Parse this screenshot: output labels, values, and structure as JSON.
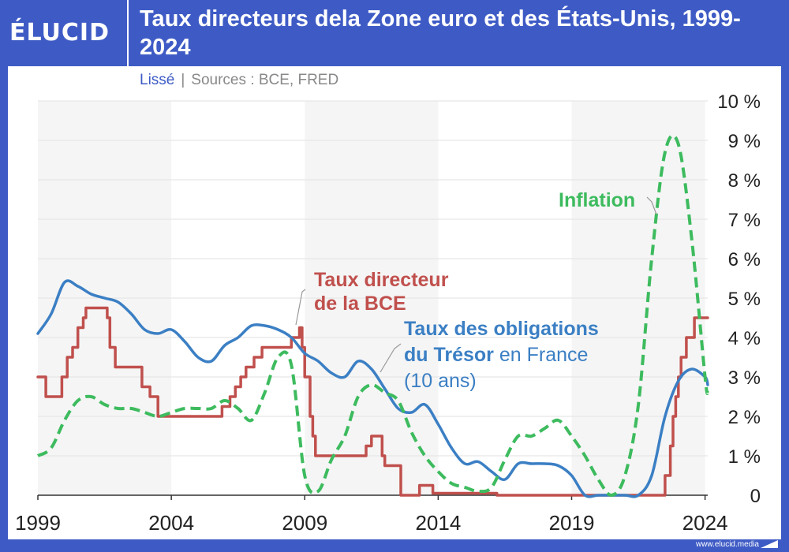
{
  "brand": {
    "logo_text": "ÉLUCID",
    "url": "www.elucid.media"
  },
  "header": {
    "title": "Taux directeurs dela Zone euro et des États-Unis, 1999-2024",
    "subtitle_smoothing": "Lissé",
    "subtitle_separator": "|",
    "subtitle_sources": "Sources : BCE, FRED"
  },
  "colors": {
    "brand_blue": "#3e5bc5",
    "ecb_rate": "#c0504d",
    "bond_rate": "#3b7fc4",
    "inflation": "#3dbb5e"
  },
  "chart_data": {
    "type": "line",
    "title": "",
    "xlabel": "",
    "ylabel": "",
    "xlim": [
      1999,
      2024.1
    ],
    "ylim": [
      0,
      10
    ],
    "x_ticks": [
      1999,
      2004,
      2009,
      2014,
      2019,
      2024
    ],
    "x_tick_labels": [
      "1999",
      "2004",
      "2009",
      "2014",
      "2019",
      "2024"
    ],
    "y_ticks": [
      0,
      1,
      2,
      3,
      4,
      5,
      6,
      7,
      8,
      9,
      10
    ],
    "y_tick_labels": [
      "0",
      "1 %",
      "2 %",
      "3 %",
      "4 %",
      "5 %",
      "6 %",
      "7 %",
      "8 %",
      "9 %",
      "10 %"
    ],
    "grid": true,
    "series": [
      {
        "name": "Taux directeur de la BCE",
        "style": "solid",
        "step": true,
        "x": [
          1999,
          1999.3,
          1999.9,
          2000.1,
          2000.3,
          2000.5,
          2000.7,
          2000.8,
          2001.6,
          2001.7,
          2001.9,
          2002.9,
          2003.2,
          2003.5,
          2005.9,
          2006.2,
          2006.4,
          2006.6,
          2006.8,
          2007.1,
          2007.4,
          2008.5,
          2008.8,
          2008.9,
          2009.0,
          2009.2,
          2009.3,
          2009.4,
          2011.3,
          2011.5,
          2011.9,
          2012.0,
          2012.6,
          2013.3,
          2013.8,
          2014.4,
          2014.7,
          2016.2,
          2022.5,
          2022.7,
          2022.8,
          2022.9,
          2023.0,
          2023.1,
          2023.3,
          2023.6,
          2024.1
        ],
        "y": [
          3.0,
          2.5,
          3.0,
          3.5,
          3.75,
          4.25,
          4.5,
          4.75,
          4.5,
          3.75,
          3.25,
          2.75,
          2.5,
          2.0,
          2.25,
          2.5,
          2.75,
          3.0,
          3.25,
          3.5,
          3.75,
          4.0,
          4.25,
          3.75,
          3.0,
          2.0,
          1.5,
          1.0,
          1.25,
          1.5,
          1.0,
          0.75,
          0.0,
          0.25,
          0.05,
          0.05,
          0.05,
          0.0,
          0.5,
          1.25,
          2.0,
          2.5,
          3.0,
          3.5,
          4.0,
          4.5,
          4.5
        ]
      },
      {
        "name": "Taux des obligations du Trésor en France (10 ans)",
        "style": "solid",
        "step": false,
        "x": [
          1999,
          1999.5,
          2000,
          2000.5,
          2001,
          2001.5,
          2002,
          2002.5,
          2003,
          2003.5,
          2004,
          2004.5,
          2005,
          2005.5,
          2006,
          2006.5,
          2007,
          2007.5,
          2008,
          2008.5,
          2009,
          2009.5,
          2010,
          2010.5,
          2011,
          2011.5,
          2012,
          2012.5,
          2013,
          2013.5,
          2014,
          2014.5,
          2015,
          2015.5,
          2016,
          2016.5,
          2017,
          2017.5,
          2018,
          2018.5,
          2019,
          2019.5,
          2020,
          2020.5,
          2021,
          2021.5,
          2022,
          2022.5,
          2023,
          2023.5,
          2024,
          2024.1
        ],
        "y": [
          4.1,
          4.6,
          5.4,
          5.3,
          5.1,
          5.0,
          4.9,
          4.6,
          4.2,
          4.1,
          4.2,
          3.9,
          3.5,
          3.4,
          3.8,
          4.0,
          4.3,
          4.3,
          4.2,
          4.0,
          3.6,
          3.4,
          3.1,
          3.0,
          3.4,
          3.2,
          2.7,
          2.2,
          2.1,
          2.3,
          1.8,
          1.2,
          0.8,
          0.85,
          0.6,
          0.4,
          0.8,
          0.8,
          0.8,
          0.75,
          0.5,
          0.0,
          0.0,
          0.0,
          0.0,
          0.0,
          0.5,
          2.0,
          2.9,
          3.2,
          3.0,
          2.8
        ]
      },
      {
        "name": "Inflation",
        "style": "dashed",
        "step": false,
        "x": [
          1999,
          1999.5,
          2000,
          2000.5,
          2001,
          2001.5,
          2002,
          2002.5,
          2003,
          2003.5,
          2004,
          2004.5,
          2005,
          2005.5,
          2006,
          2006.5,
          2007,
          2007.5,
          2008,
          2008.5,
          2009,
          2009.5,
          2010,
          2010.5,
          2011,
          2011.5,
          2012,
          2012.5,
          2013,
          2013.5,
          2014,
          2014.5,
          2015,
          2015.5,
          2016,
          2016.5,
          2017,
          2017.5,
          2018,
          2018.5,
          2019,
          2019.5,
          2020,
          2020.5,
          2021,
          2021.5,
          2022,
          2022.5,
          2023,
          2023.5,
          2024,
          2024.1
        ],
        "y": [
          1.0,
          1.2,
          1.9,
          2.4,
          2.5,
          2.3,
          2.2,
          2.2,
          2.1,
          2.0,
          2.1,
          2.2,
          2.2,
          2.2,
          2.4,
          2.2,
          1.9,
          2.6,
          3.5,
          3.3,
          0.5,
          0.1,
          0.9,
          1.5,
          2.5,
          2.8,
          2.6,
          2.4,
          1.6,
          1.0,
          0.6,
          0.3,
          0.2,
          0.1,
          0.2,
          0.9,
          1.5,
          1.5,
          1.7,
          1.9,
          1.5,
          1.0,
          0.4,
          0.0,
          0.5,
          2.3,
          6.0,
          8.7,
          8.9,
          6.5,
          3.0,
          2.6
        ]
      }
    ],
    "labels": {
      "ecb_line1": "Taux directeur",
      "ecb_line2": "de la BCE",
      "bond_line1": "Taux des obligations",
      "bond_line2_bold": "du Trésor",
      "bond_line2_rest": " en France",
      "bond_line3": "(10 ans)",
      "inflation": "Inflation"
    }
  }
}
